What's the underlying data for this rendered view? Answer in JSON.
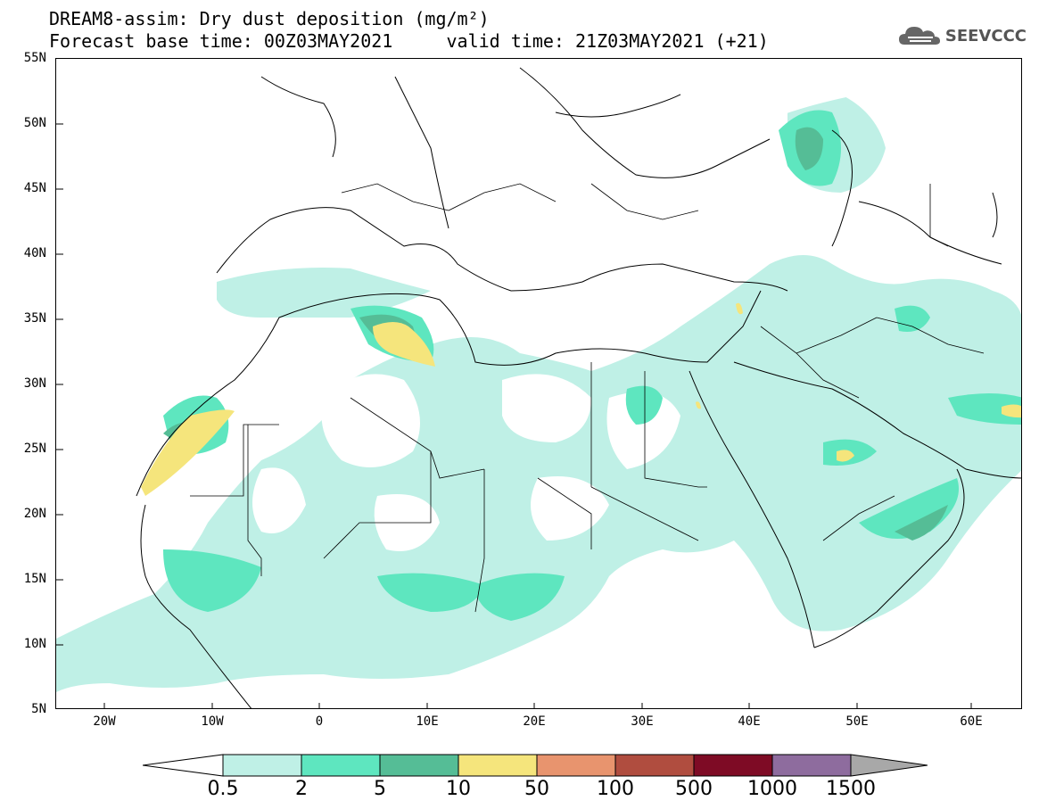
{
  "title": {
    "line1": "DREAM8-assim: Dry dust deposition (mg/m²)",
    "line2": "Forecast base time: 00Z03MAY2021     valid time: 21Z03MAY2021 (+21)"
  },
  "logo": {
    "text": "SEEVCCC",
    "icon": "cloud-icon"
  },
  "map": {
    "lat_labels": [
      "55N",
      "50N",
      "45N",
      "40N",
      "35N",
      "30N",
      "25N",
      "20N",
      "15N",
      "10N",
      "5N"
    ],
    "lon_labels": [
      "20W",
      "10W",
      "0",
      "10E",
      "20E",
      "30E",
      "40E",
      "50E",
      "60E"
    ],
    "lat_range": [
      5,
      55
    ],
    "lon_range": [
      -25,
      65
    ],
    "projection": "lat-lon"
  },
  "legend": {
    "levels": [
      "0.5",
      "2",
      "5",
      "10",
      "50",
      "100",
      "500",
      "1000",
      "1500"
    ],
    "colors": [
      "#ffffff",
      "#bff0e6",
      "#5ee6bf",
      "#55bd96",
      "#f5e57c",
      "#e8946e",
      "#b04d3f",
      "#7e0b25",
      "#8e6c9e",
      "#a8a8a8"
    ]
  }
}
